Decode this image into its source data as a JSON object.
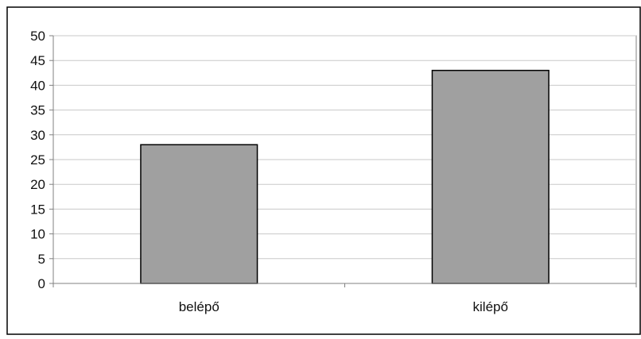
{
  "chart_data": {
    "type": "bar",
    "title": "",
    "xlabel": "",
    "ylabel": "",
    "categories": [
      "belépő",
      "kilépő"
    ],
    "values": [
      28,
      43
    ],
    "ylim": [
      0,
      50
    ],
    "yticks": [
      0,
      5,
      10,
      15,
      20,
      25,
      30,
      35,
      40,
      45,
      50
    ],
    "grid": true,
    "legend": "none",
    "colors": {
      "bar_fill": "#a0a0a0",
      "bar_stroke": "#000000",
      "grid": "#c8c8c8",
      "axis": "#808080",
      "frame": "#000000"
    }
  }
}
